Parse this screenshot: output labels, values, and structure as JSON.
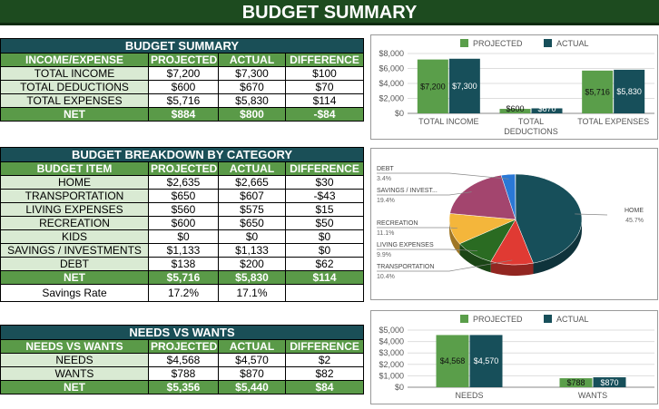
{
  "title": "BUDGET SUMMARY",
  "summary": {
    "title": "BUDGET SUMMARY",
    "headers": [
      "INCOME/EXPENSE",
      "PROJECTED",
      "ACTUAL",
      "DIFFERENCE"
    ],
    "rows": [
      [
        "TOTAL INCOME",
        "$7,200",
        "$7,300",
        "$100"
      ],
      [
        "TOTAL DEDUCTIONS",
        "$600",
        "$670",
        "$70"
      ],
      [
        "TOTAL EXPENSES",
        "$5,716",
        "$5,830",
        "$114"
      ]
    ],
    "net": [
      "NET",
      "$884",
      "$800",
      "-$84"
    ]
  },
  "breakdown": {
    "title": "BUDGET BREAKDOWN BY CATEGORY",
    "headers": [
      "BUDGET ITEM",
      "PROJECTED",
      "ACTUAL",
      "DIFFERENCE"
    ],
    "rows": [
      [
        "HOME",
        "$2,635",
        "$2,665",
        "$30"
      ],
      [
        "TRANSPORTATION",
        "$650",
        "$607",
        "-$43"
      ],
      [
        "LIVING EXPENSES",
        "$560",
        "$575",
        "$15"
      ],
      [
        "RECREATION",
        "$600",
        "$650",
        "$50"
      ],
      [
        "KIDS",
        "$0",
        "$0",
        "$0"
      ],
      [
        "SAVINGS / INVESTMENTS",
        "$1,133",
        "$1,133",
        "$0"
      ],
      [
        "DEBT",
        "$138",
        "$200",
        "$62"
      ]
    ],
    "net": [
      "NET",
      "$5,716",
      "$5,830",
      "$114"
    ],
    "savings": [
      "Savings Rate",
      "17.2%",
      "17.1%",
      ""
    ]
  },
  "needs": {
    "title": "NEEDS VS WANTS",
    "headers": [
      "NEEDS VS WANTS",
      "PROJECTED",
      "ACTUAL",
      "DIFFERENCE"
    ],
    "rows": [
      [
        "NEEDS",
        "$4,568",
        "$4,570",
        "$2"
      ],
      [
        "WANTS",
        "$788",
        "$870",
        "$82"
      ]
    ],
    "net": [
      "NET",
      "$5,356",
      "$5,440",
      "$84"
    ]
  },
  "colors": {
    "projected": "#5a9e4a",
    "actual": "#174f5a"
  },
  "chart_data": [
    {
      "type": "bar",
      "legend": [
        "PROJECTED",
        "ACTUAL"
      ],
      "legend_position": "top",
      "categories": [
        "TOTAL INCOME",
        "TOTAL DEDUCTIONS",
        "TOTAL EXPENSES"
      ],
      "series": [
        {
          "name": "PROJECTED",
          "values": [
            7200,
            600,
            5716
          ],
          "labels": [
            "$7,200",
            "$600",
            "$5,716"
          ]
        },
        {
          "name": "ACTUAL",
          "values": [
            7300,
            670,
            5830
          ],
          "labels": [
            "$7,300",
            "$670",
            "$5,830"
          ]
        }
      ],
      "yticks": [
        "$0",
        "$2,000",
        "$4,000",
        "$6,000",
        "$8,000"
      ],
      "ylim": [
        0,
        8000
      ]
    },
    {
      "type": "pie",
      "slices": [
        {
          "label": "HOME",
          "pct": "45.7%",
          "value": 45.7,
          "color": "#174f5a"
        },
        {
          "label": "TRANSPORTATION",
          "pct": "10.4%",
          "value": 10.4,
          "color": "#e03a33"
        },
        {
          "label": "LIVING EXPENSES",
          "pct": "9.9%",
          "value": 9.9,
          "color": "#2a6b22"
        },
        {
          "label": "RECREATION",
          "pct": "11.1%",
          "value": 11.1,
          "color": "#f4b63b"
        },
        {
          "label": "SAVINGS / INVEST...",
          "pct": "19.4%",
          "value": 19.4,
          "color": "#a3456e"
        },
        {
          "label": "DEBT",
          "pct": "3.4%",
          "value": 3.4,
          "color": "#2a78d6"
        }
      ]
    },
    {
      "type": "bar",
      "legend": [
        "PROJECTED",
        "ACTUAL"
      ],
      "legend_position": "top",
      "categories": [
        "NEEDS",
        "WANTS"
      ],
      "series": [
        {
          "name": "PROJECTED",
          "values": [
            4568,
            788
          ],
          "labels": [
            "$4,568",
            "$788"
          ]
        },
        {
          "name": "ACTUAL",
          "values": [
            4570,
            870
          ],
          "labels": [
            "$4,570",
            "$870"
          ]
        }
      ],
      "yticks": [
        "$0",
        "$1,000",
        "$2,000",
        "$3,000",
        "$4,000",
        "$5,000"
      ],
      "ylim": [
        0,
        5000
      ]
    }
  ]
}
